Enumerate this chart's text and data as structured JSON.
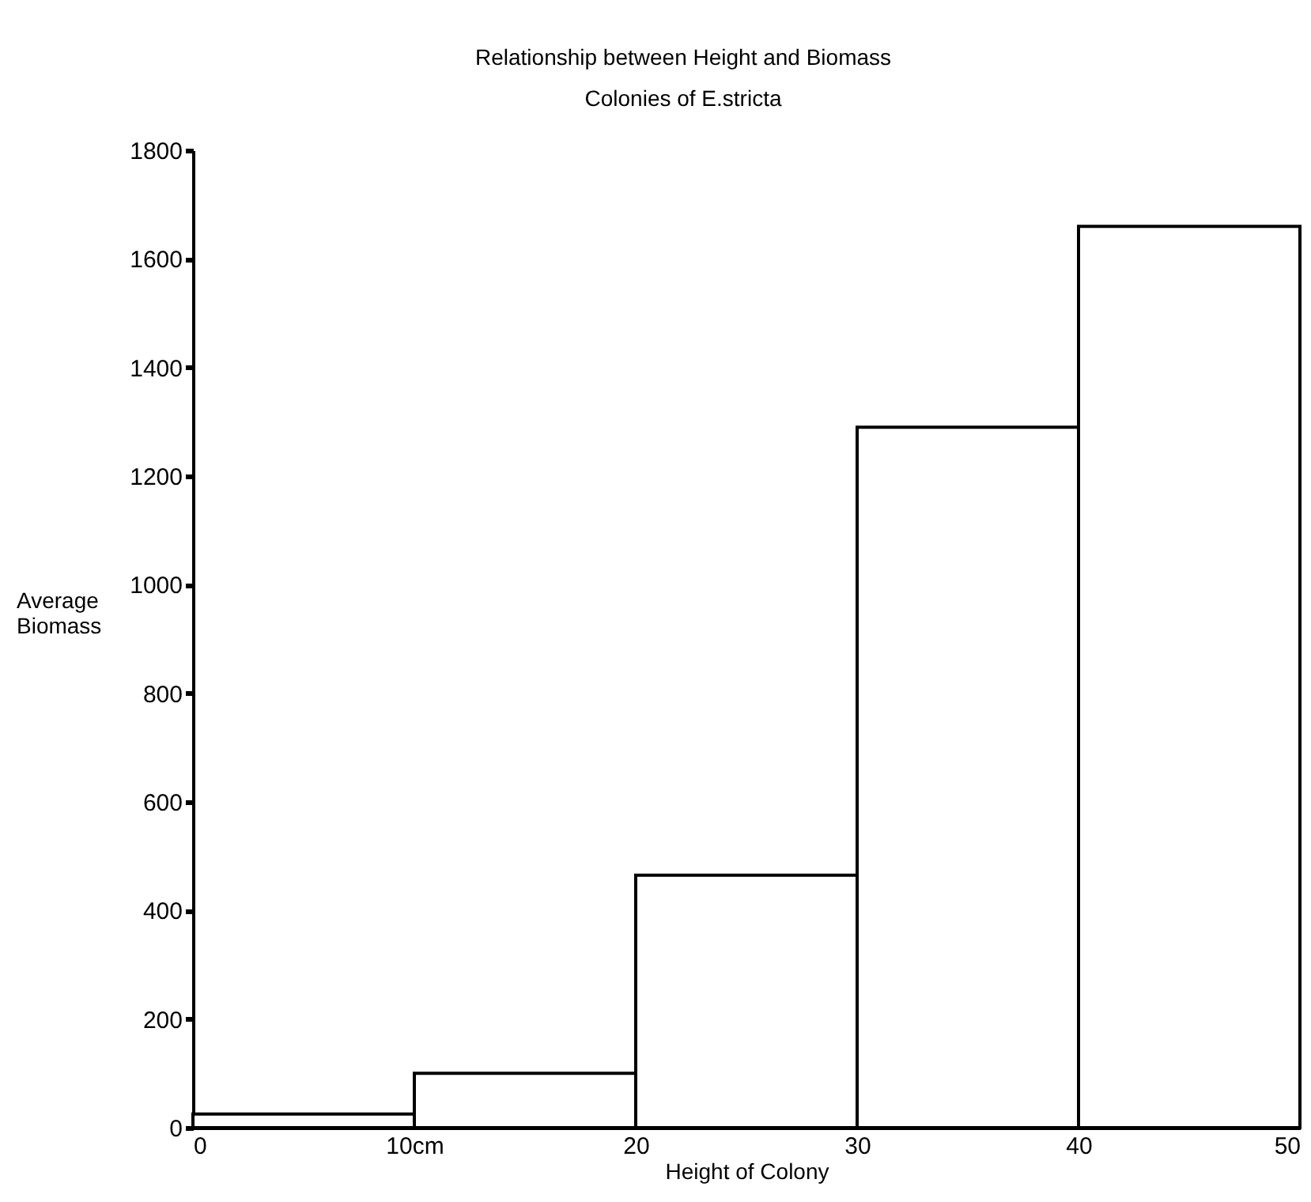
{
  "chart_data": {
    "type": "histogram",
    "title": "Relationship between Height and Biomass",
    "subtitle": "Colonies of E.stricta",
    "xlabel": "Height of Colony",
    "ylabel": "Average Biomass",
    "bins": [
      0,
      10,
      20,
      30,
      40,
      50
    ],
    "values": [
      25,
      100,
      465,
      1290,
      1660
    ],
    "color": "#ffffff",
    "xlim": [
      0,
      50
    ],
    "xticks": [
      0,
      {
        "value": 10,
        "label": "10cm"
      },
      20,
      30,
      40,
      50
    ],
    "ylim": [
      0,
      1800
    ],
    "yticks": [
      0,
      200,
      400,
      600,
      800,
      1000,
      1200,
      1400,
      1600,
      1800
    ],
    "grid": false
  }
}
